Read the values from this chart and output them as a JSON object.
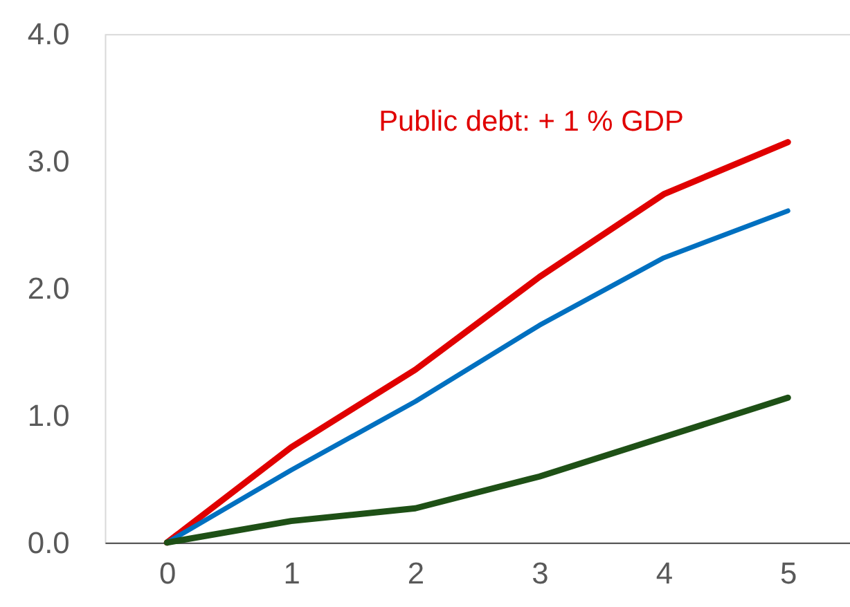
{
  "chart_data": {
    "type": "line",
    "categories": [
      "0",
      "1",
      "2",
      "3",
      "4",
      "5"
    ],
    "series": [
      {
        "name": "Public debt: + 1 % GDP",
        "color": "#e00000",
        "values": [
          0,
          0.75,
          1.36,
          2.09,
          2.74,
          3.15
        ]
      },
      {
        "color": "#0070c0",
        "values": [
          0,
          0.57,
          1.11,
          1.71,
          2.24,
          2.61
        ]
      },
      {
        "color": "#1e5016",
        "values": [
          0,
          0.17,
          0.27,
          0.52,
          0.83,
          1.14
        ]
      }
    ],
    "ylim": [
      0,
      4
    ],
    "yticks": [
      {
        "value": 0,
        "label": "0.0"
      },
      {
        "value": 1,
        "label": "1.0"
      },
      {
        "value": 2,
        "label": "2.0"
      },
      {
        "value": 3,
        "label": "3.0"
      },
      {
        "value": 4,
        "label": "4.0"
      }
    ],
    "grid": false,
    "legend": false,
    "marker": "none",
    "line_style": "solid"
  }
}
